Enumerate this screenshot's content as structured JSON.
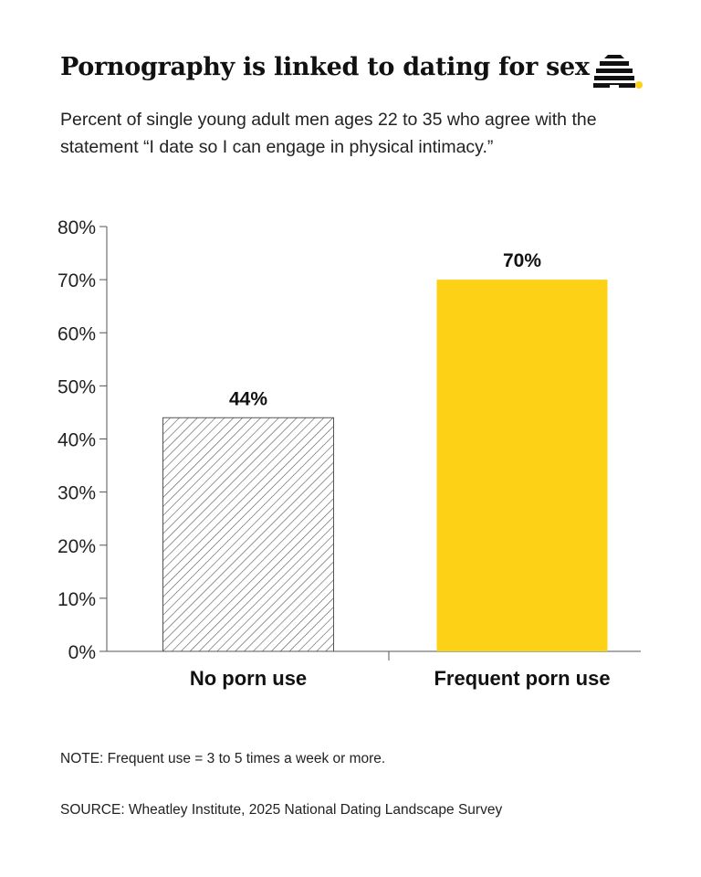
{
  "header": {
    "title": "Pornography is linked to dating for sex",
    "subtitle": "Percent of single young adult men ages 22 to 35 who agree with the statement “I date so I can engage in physical intimacy.”",
    "logo_icon": "beehive-icon"
  },
  "chart_data": {
    "type": "bar",
    "categories": [
      "No porn use",
      "Frequent porn use"
    ],
    "values": [
      44,
      70
    ],
    "value_labels": [
      "44%",
      "70%"
    ],
    "colors": [
      "hatched",
      "#FCD116"
    ],
    "ylim": [
      0,
      80
    ],
    "yticks": [
      0,
      10,
      20,
      30,
      40,
      50,
      60,
      70,
      80
    ],
    "ytick_labels": [
      "0%",
      "10%",
      "20%",
      "30%",
      "40%",
      "50%",
      "60%",
      "70%",
      "80%"
    ],
    "grid": false,
    "legend": "none"
  },
  "footer": {
    "note": "NOTE: Frequent use = 3 to 5 times a week or more.",
    "source": "SOURCE: Wheatley Institute, 2025 National Dating Landscape Survey"
  },
  "colors": {
    "accent": "#FCD116",
    "text": "#111111",
    "axis": "#555555"
  }
}
